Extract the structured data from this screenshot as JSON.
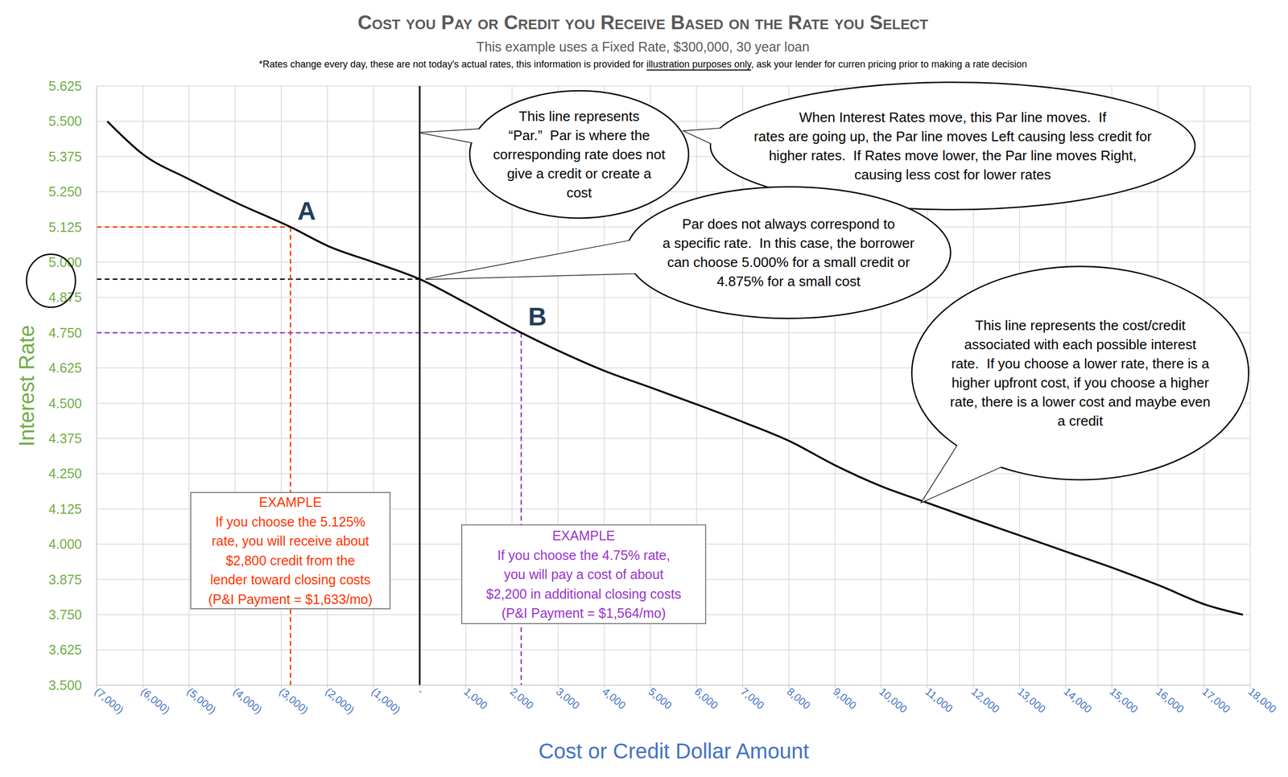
{
  "chart_data": {
    "type": "line",
    "title": "Cost you Pay or Credit you Receive Based on the Rate you Select",
    "subtitle": "This example uses a Fixed Rate, $300,000, 30 year loan",
    "footnote": [
      {
        "text": "*Rates change every day, these are not today's actual rates, this information is provided for "
      },
      {
        "text": "illustration purposes only",
        "underline": true
      },
      {
        "text": ", ask your lender for curren pricing prior to making a rate decision"
      }
    ],
    "x_label": "Cost or Credit Dollar Amount",
    "y_label": "Interest Rate",
    "color": "#000000",
    "x": [
      -6770,
      -6000,
      -5020,
      -3950,
      -2800,
      -1980,
      -1000,
      0,
      960,
      2200,
      3020,
      4000,
      4980,
      6050,
      7040,
      8020,
      9000,
      9980,
      10960,
      11950,
      13020,
      14090,
      15070,
      16050,
      17040,
      17840
    ],
    "values": [
      5.5,
      5.383,
      5.296,
      5.209,
      5.125,
      5.057,
      5,
      4.94,
      4.859,
      4.75,
      4.685,
      4.615,
      4.557,
      4.493,
      4.431,
      4.365,
      4.28,
      4.207,
      4.149,
      4.091,
      4.03,
      3.969,
      3.913,
      3.852,
      3.785,
      3.75
    ],
    "xlim": [
      -7000,
      18000
    ],
    "ylim": [
      3.5,
      5.625
    ],
    "xticks": [
      {
        "value": -7000,
        "label": "(7,000)"
      },
      {
        "value": -6000,
        "label": "(6,000)"
      },
      {
        "value": -5000,
        "label": "(5,000)"
      },
      {
        "value": -4000,
        "label": "(4,000)"
      },
      {
        "value": -3000,
        "label": "(3,000)"
      },
      {
        "value": -2000,
        "label": "(2,000)"
      },
      {
        "value": -1000,
        "label": "(1,000)"
      },
      {
        "value": 0,
        "label": "-"
      },
      {
        "value": 1000,
        "label": "1,000"
      },
      {
        "value": 2000,
        "label": "2,000"
      },
      {
        "value": 3000,
        "label": "3,000"
      },
      {
        "value": 4000,
        "label": "4,000"
      },
      {
        "value": 5000,
        "label": "5,000"
      },
      {
        "value": 6000,
        "label": "6,000"
      },
      {
        "value": 7000,
        "label": "7,000"
      },
      {
        "value": 8000,
        "label": "8,000"
      },
      {
        "value": 9000,
        "label": "9,000"
      },
      {
        "value": 10000,
        "label": "10,000"
      },
      {
        "value": 11000,
        "label": "11,000"
      },
      {
        "value": 12000,
        "label": "12,000"
      },
      {
        "value": 13000,
        "label": "13,000"
      },
      {
        "value": 14000,
        "label": "14,000"
      },
      {
        "value": 15000,
        "label": "15,000"
      },
      {
        "value": 16000,
        "label": "16,000"
      },
      {
        "value": 17000,
        "label": "17,000"
      },
      {
        "value": 18000,
        "label": "18,000"
      }
    ],
    "yticks": [
      {
        "value": 3.5,
        "label": "3.500"
      },
      3.625,
      {
        "value": 3.75,
        "label": "3.750"
      },
      3.875,
      {
        "value": 4,
        "label": "4.000"
      },
      4.125,
      {
        "value": 4.25,
        "label": "4.250"
      },
      4.375,
      {
        "value": 4.5,
        "label": "4.500"
      },
      4.625,
      {
        "value": 4.75,
        "label": "4.750"
      },
      4.875,
      {
        "value": 5,
        "label": "5.000"
      },
      5.125,
      {
        "value": 5.25,
        "label": "5.250"
      },
      5.375,
      {
        "value": 5.5,
        "label": "5.500"
      },
      5.625
    ],
    "grid": true,
    "par": {
      "x": 0,
      "y": 4.94
    },
    "points": [
      {
        "label": "A",
        "x": -2800,
        "y": 5.125,
        "color": "#ff3300",
        "example": [
          "EXAMPLE",
          "If you choose the 5.125%",
          "rate, you will receive about",
          "$2,800 credit from the",
          "lender toward closing costs",
          "(P&I Payment = $1,633/mo)"
        ]
      },
      {
        "label": "B",
        "x": 2200,
        "y": 4.75,
        "color": "#9933cc",
        "example": [
          "EXAMPLE",
          "If you choose the 4.75% rate,",
          "you will pay a cost of about",
          "$2,200 in additional closing costs",
          "(P&I Payment = $1,564/mo)"
        ]
      }
    ],
    "callouts": [
      {
        "lines": [
          "This line represents",
          "“Par.”  Par is where the",
          "corresponding rate does not",
          "give a credit or create a",
          "cost"
        ]
      },
      {
        "lines": [
          "When Interest Rates move, this Par line moves.  If",
          "rates are going up, the Par line moves Left causing less credit for",
          "higher rates.  If Rates move lower, the Par line moves Right,",
          "causing less cost for lower rates"
        ]
      },
      {
        "lines": [
          "Par does not always correspond to",
          "a specific rate.  In this case, the borrower",
          "can choose 5.000% for a small credit or",
          "4.875% for a small cost"
        ]
      },
      {
        "lines": [
          "This line represents the cost/credit",
          "associated with each possible interest",
          "rate.  If you choose a lower rate, there is a",
          "higher upfront cost, if you choose a higher",
          "rate, there is a lower cost and maybe even",
          "a credit"
        ]
      }
    ]
  }
}
